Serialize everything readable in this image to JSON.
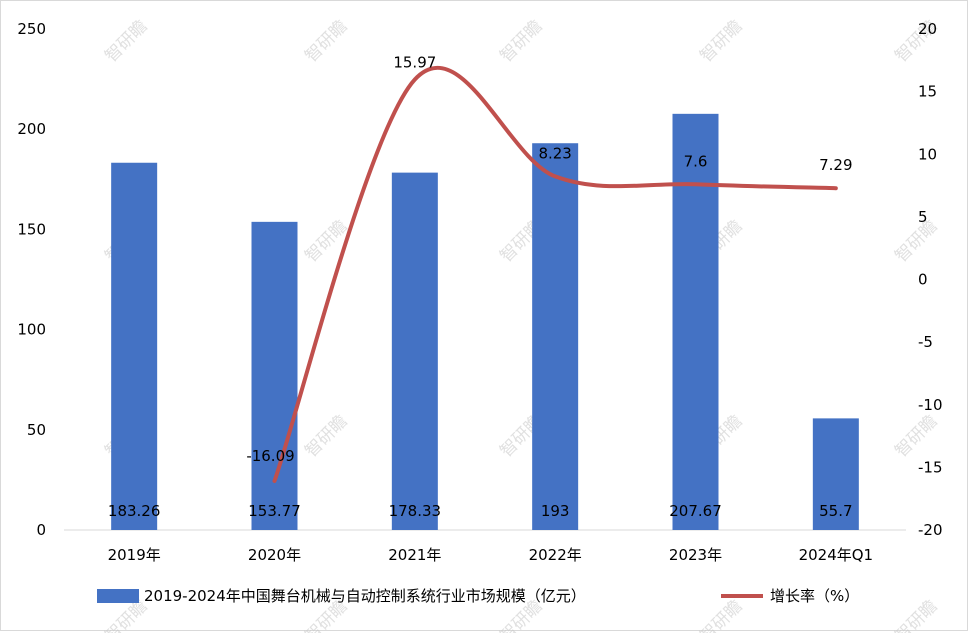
{
  "watermark": "智研瞻",
  "colors": {
    "bar": "#4472C4",
    "line": "#C0504D",
    "axis": "#d9d9d9"
  },
  "chart_data": {
    "type": "bar",
    "categories": [
      "2019年",
      "2020年",
      "2021年",
      "2022年",
      "2023年",
      "2024年Q1"
    ],
    "series": [
      {
        "name": "2019-2024年中国舞台机械与自动控制系统行业市场规模（亿元）",
        "type": "bar",
        "axis": "left",
        "values": [
          183.26,
          153.77,
          178.33,
          193,
          207.67,
          55.7
        ],
        "labels": [
          "183.26",
          "153.77",
          "178.33",
          "193",
          "207.67",
          "55.7"
        ]
      },
      {
        "name": "增长率（%）",
        "type": "line",
        "axis": "right",
        "values": [
          null,
          -16.09,
          15.97,
          8.23,
          7.6,
          7.29
        ],
        "labels": [
          "",
          "-16.09",
          "15.97",
          "8.23",
          "7.6",
          "7.29"
        ]
      }
    ],
    "left_axis": {
      "ylim": [
        0,
        250
      ],
      "ticks": [
        "0",
        "50",
        "100",
        "150",
        "200",
        "250"
      ]
    },
    "right_axis": {
      "ylim": [
        -20,
        20
      ],
      "ticks": [
        "-20",
        "-15",
        "-10",
        "-5",
        "0",
        "5",
        "10",
        "15",
        "20"
      ]
    },
    "grid": false,
    "legend_position": "bottom"
  }
}
